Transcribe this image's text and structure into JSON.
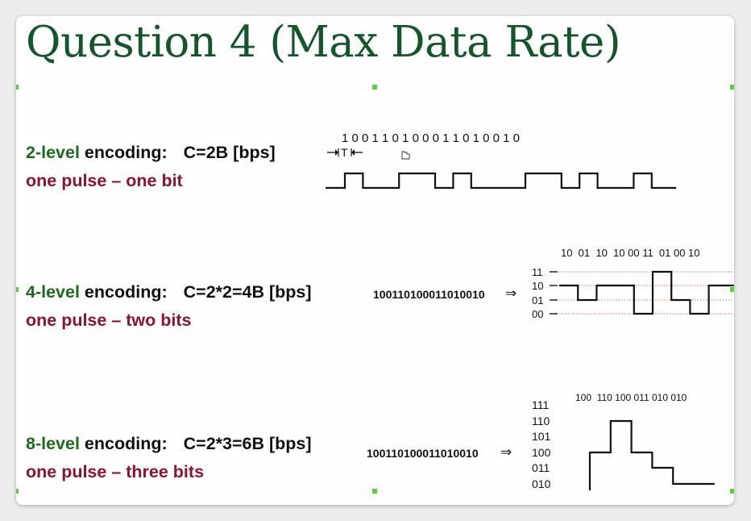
{
  "title": "Question 4 (Max Data Rate)",
  "rows": [
    {
      "level": "2-level",
      "encoding_word": "encoding:",
      "formula": "C=2B [bps]",
      "sub": "one pulse – one bit",
      "bits_label": "1 0 0 1 1 0 1 0 0 0 1 1 0 1 0 0 1 0",
      "period_label": "T",
      "levels_bin": [
        1,
        0,
        0,
        1,
        1,
        0,
        1,
        0,
        0,
        0,
        1,
        1,
        0,
        1,
        0,
        0,
        1,
        0
      ]
    },
    {
      "level": "4-level",
      "encoding_word": "encoding:",
      "formula": "C=2*2=4B [bps]",
      "sub": "one pulse – two bits",
      "sequence": "100110100011010010",
      "arrow": "⇒",
      "group_label": "10  01  10  10 00 11  01 00 10",
      "y_levels": [
        "11",
        "10",
        "01",
        "00"
      ],
      "symbols": [
        "10",
        "01",
        "10",
        "10",
        "00",
        "11",
        "01",
        "00",
        "10"
      ]
    },
    {
      "level": "8-level",
      "encoding_word": "encoding:",
      "formula": "C=2*3=6B [bps]",
      "sub": "one pulse – three bits",
      "sequence": "100110100011010010",
      "arrow": "⇒",
      "group_label": "100  110 100 011 010 010",
      "y_levels": [
        "111",
        "110",
        "101",
        "100",
        "011",
        "010"
      ],
      "symbols": [
        "100",
        "110",
        "100",
        "011",
        "010",
        "010"
      ]
    }
  ]
}
